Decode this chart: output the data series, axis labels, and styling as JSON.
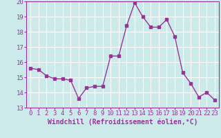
{
  "x": [
    0,
    1,
    2,
    3,
    4,
    5,
    6,
    7,
    8,
    9,
    10,
    11,
    12,
    13,
    14,
    15,
    16,
    17,
    18,
    19,
    20,
    21,
    22,
    23
  ],
  "y": [
    15.6,
    15.5,
    15.1,
    14.9,
    14.9,
    14.8,
    13.6,
    14.3,
    14.4,
    14.4,
    16.4,
    16.4,
    18.4,
    19.9,
    19.0,
    18.3,
    18.3,
    18.8,
    17.7,
    15.3,
    14.6,
    13.7,
    14.0,
    13.5
  ],
  "line_color": "#993399",
  "marker": "s",
  "markersize": 2.5,
  "linewidth": 1.0,
  "xlabel": "Windchill (Refroidissement éolien,°C)",
  "xlim": [
    -0.5,
    23.5
  ],
  "ylim": [
    13,
    20
  ],
  "yticks": [
    13,
    14,
    15,
    16,
    17,
    18,
    19,
    20
  ],
  "xticks": [
    0,
    1,
    2,
    3,
    4,
    5,
    6,
    7,
    8,
    9,
    10,
    11,
    12,
    13,
    14,
    15,
    16,
    17,
    18,
    19,
    20,
    21,
    22,
    23
  ],
  "xtick_labels": [
    "0",
    "1",
    "2",
    "3",
    "4",
    "5",
    "6",
    "7",
    "8",
    "9",
    "10",
    "11",
    "12",
    "13",
    "14",
    "15",
    "16",
    "17",
    "18",
    "19",
    "20",
    "21",
    "22",
    "23"
  ],
  "background_color": "#cceaea",
  "grid_color": "#ffffff",
  "tick_color": "#993399",
  "label_color": "#993399",
  "font_size": 6.5,
  "xlabel_fontsize": 7.0
}
